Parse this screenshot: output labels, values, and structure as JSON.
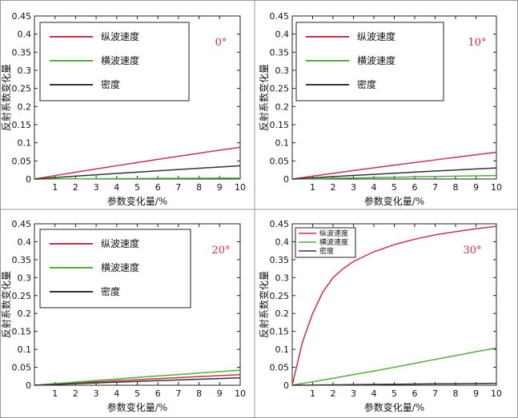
{
  "chart_data": [
    {
      "type": "line",
      "xlabel": "参数变化量/%",
      "ylabel": "反射系数变化量",
      "annotation": "0°",
      "xlim": [
        0,
        10
      ],
      "ylim": [
        0,
        0.45
      ],
      "xticks": [
        "1",
        "2",
        "3",
        "4",
        "5",
        "6",
        "7",
        "8",
        "9",
        "10"
      ],
      "yticks": [
        "0",
        "0.05",
        "0.1",
        "0.15",
        "0.2",
        "0.25",
        "0.3",
        "0.35",
        "0.4",
        "0.45"
      ],
      "legend_placement": "top-left",
      "x": [
        0,
        1,
        2,
        3,
        4,
        5,
        6,
        7,
        8,
        9,
        10
      ],
      "series": [
        {
          "name": "纵波速度",
          "color": "#c8304a",
          "values": [
            0,
            0.0095,
            0.0188,
            0.0278,
            0.0368,
            0.0456,
            0.0543,
            0.0628,
            0.0712,
            0.0796,
            0.0878
          ]
        },
        {
          "name": "横波速度",
          "color": "#4caf3c",
          "values": [
            0,
            0.0003,
            0.0006,
            0.0009,
            0.0012,
            0.0015,
            0.0018,
            0.002,
            0.0022,
            0.0024,
            0.0026
          ]
        },
        {
          "name": "密度",
          "color": "#333333",
          "values": [
            0,
            0.004,
            0.0079,
            0.0117,
            0.0154,
            0.0191,
            0.0227,
            0.0263,
            0.0298,
            0.0332,
            0.0366
          ]
        }
      ]
    },
    {
      "type": "line",
      "xlabel": "参数变化量/%",
      "ylabel": "反射系数变化量",
      "annotation": "10°",
      "xlim": [
        0,
        10
      ],
      "ylim": [
        0,
        0.45
      ],
      "xticks": [
        "1",
        "2",
        "3",
        "4",
        "5",
        "6",
        "7",
        "8",
        "9",
        "10"
      ],
      "yticks": [
        "0",
        "0.05",
        "0.1",
        "0.15",
        "0.2",
        "0.25",
        "0.3",
        "0.35",
        "0.4",
        "0.45"
      ],
      "legend_placement": "top-left",
      "x": [
        0,
        1,
        2,
        3,
        4,
        5,
        6,
        7,
        8,
        9,
        10
      ],
      "series": [
        {
          "name": "纵波速度",
          "color": "#c8304a",
          "values": [
            0,
            0.008,
            0.0158,
            0.0234,
            0.0309,
            0.0383,
            0.0456,
            0.0528,
            0.0599,
            0.0669,
            0.0738
          ]
        },
        {
          "name": "横波速度",
          "color": "#4caf3c",
          "values": [
            0,
            0.001,
            0.002,
            0.003,
            0.004,
            0.005,
            0.006,
            0.0069,
            0.0079,
            0.0088,
            0.0097
          ]
        },
        {
          "name": "密度",
          "color": "#333333",
          "values": [
            0,
            0.0033,
            0.0066,
            0.0098,
            0.0129,
            0.016,
            0.019,
            0.022,
            0.0249,
            0.0278,
            0.0306
          ]
        }
      ]
    },
    {
      "type": "line",
      "xlabel": "参数变化量/%",
      "ylabel": "反射系数变化量",
      "annotation": "20°",
      "xlim": [
        0,
        10
      ],
      "ylim": [
        0,
        0.45
      ],
      "xticks": [
        "1",
        "2",
        "3",
        "4",
        "5",
        "6",
        "7",
        "8",
        "9",
        "10"
      ],
      "yticks": [
        "0",
        "0.05",
        "0.1",
        "0.15",
        "0.2",
        "0.25",
        "0.3",
        "0.35",
        "0.4",
        "0.45"
      ],
      "legend_placement": "top-left",
      "x": [
        0,
        1,
        2,
        3,
        4,
        5,
        6,
        7,
        8,
        9,
        10
      ],
      "series": [
        {
          "name": "纵波速度",
          "color": "#c8304a",
          "values": [
            0,
            0.0032,
            0.0063,
            0.0094,
            0.0124,
            0.0154,
            0.0183,
            0.0212,
            0.024,
            0.0268,
            0.0295
          ]
        },
        {
          "name": "横波速度",
          "color": "#4caf3c",
          "values": [
            0,
            0.0044,
            0.0088,
            0.0131,
            0.0174,
            0.0216,
            0.0258,
            0.0299,
            0.034,
            0.038,
            0.042
          ]
        },
        {
          "name": "密度",
          "color": "#333333",
          "values": [
            0,
            0.0022,
            0.0044,
            0.0065,
            0.0086,
            0.0107,
            0.0127,
            0.0147,
            0.0167,
            0.0186,
            0.0205
          ]
        }
      ]
    },
    {
      "type": "line",
      "xlabel": "参数变化量/%",
      "ylabel": "反射系数变化量",
      "annotation": "30°",
      "xlim": [
        0,
        10
      ],
      "ylim": [
        0,
        0.45
      ],
      "xticks": [
        "1",
        "2",
        "3",
        "4",
        "5",
        "6",
        "7",
        "8",
        "9",
        "10"
      ],
      "yticks": [
        "0",
        "0.05",
        "0.1",
        "0.15",
        "0.2",
        "0.25",
        "0.3",
        "0.35",
        "0.4",
        "0.45"
      ],
      "legend_placement": "top-left",
      "x": [
        0,
        0.5,
        1,
        1.5,
        2,
        2.5,
        3,
        4,
        5,
        6,
        7,
        8,
        9,
        10
      ],
      "series": [
        {
          "name": "纵波速度",
          "color": "#c8304a",
          "values": [
            0,
            0.12,
            0.2,
            0.26,
            0.3,
            0.325,
            0.345,
            0.372,
            0.392,
            0.407,
            0.419,
            0.428,
            0.436,
            0.443
          ]
        },
        {
          "name": "横波速度",
          "color": "#4caf3c",
          "values": [
            0,
            0.005,
            0.0095,
            0.0145,
            0.0195,
            0.0245,
            0.0295,
            0.0395,
            0.05,
            0.061,
            0.072,
            0.0825,
            0.0935,
            0.1035
          ]
        },
        {
          "name": "密度",
          "color": "#333333",
          "values": [
            0,
            0.0003,
            0.0006,
            0.0009,
            0.0012,
            0.0015,
            0.0018,
            0.0023,
            0.0028,
            0.0033,
            0.0038,
            0.0043,
            0.0048,
            0.0053
          ]
        }
      ]
    }
  ]
}
